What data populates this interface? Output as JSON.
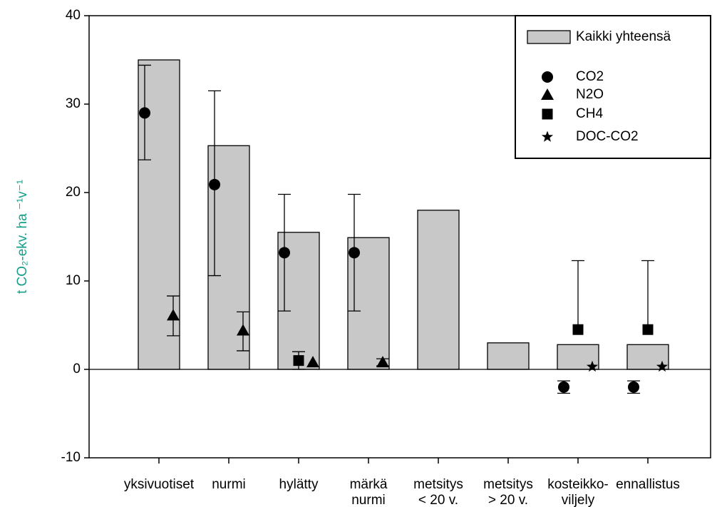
{
  "chart_data": {
    "type": "bar",
    "y_label": "t CO₂-ekv. ha ⁻¹v⁻¹",
    "y_label_color": "#16a08a",
    "categories": [
      [
        "yksivuotiset"
      ],
      [
        "nurmi"
      ],
      [
        "hylätty"
      ],
      [
        "märkä",
        "nurmi"
      ],
      [
        "metsitys",
        "< 20 v."
      ],
      [
        "metsitys",
        "> 20 v."
      ],
      [
        "kosteikko-",
        "viljely"
      ],
      [
        "ennallistus"
      ]
    ],
    "ylim": [
      -10,
      40
    ],
    "yticks": [
      -10,
      0,
      10,
      20,
      30,
      40
    ],
    "legend": "upper right",
    "series": [
      {
        "name": "Kaikki yhteensä",
        "type": "bar",
        "color": "#c8c8c8",
        "values": [
          35,
          25.3,
          15.5,
          14.9,
          18,
          3,
          2.8,
          2.8
        ]
      },
      {
        "name": "CO2",
        "type": "point",
        "marker": "circle",
        "color": "#000000",
        "offset": -1,
        "values": [
          29,
          20.9,
          13.2,
          13.2,
          null,
          null,
          -2,
          -2
        ],
        "error_minus": [
          5.3,
          10.3,
          6.6,
          6.6,
          null,
          null,
          0.7,
          0.7
        ],
        "error_plus": [
          5.4,
          10.6,
          6.6,
          6.6,
          null,
          null,
          0.7,
          0.7
        ]
      },
      {
        "name": "N2O",
        "type": "point",
        "marker": "triangle",
        "color": "#000000",
        "offset": 1,
        "values": [
          6.1,
          4.4,
          0.8,
          0.8,
          null,
          null,
          null,
          null
        ],
        "error_minus": [
          2.3,
          2.3,
          null,
          0.4,
          null,
          null,
          null,
          null
        ],
        "error_plus": [
          2.2,
          2.1,
          null,
          0.4,
          null,
          null,
          null,
          null
        ]
      },
      {
        "name": "CH4",
        "type": "point",
        "marker": "square",
        "color": "#000000",
        "offset": 0,
        "values": [
          null,
          null,
          1.0,
          null,
          null,
          null,
          4.5,
          4.5
        ],
        "error_minus": [
          null,
          null,
          1.0,
          null,
          null,
          null,
          null,
          null
        ],
        "error_plus": [
          null,
          null,
          1.0,
          null,
          null,
          null,
          7.8,
          7.8
        ]
      },
      {
        "name": "DOC-CO2",
        "type": "point",
        "marker": "star",
        "color": "#000000",
        "offset": 1,
        "values": [
          null,
          null,
          null,
          null,
          null,
          null,
          0.3,
          0.3
        ],
        "error_minus": [
          null,
          null,
          null,
          null,
          null,
          null,
          null,
          null
        ],
        "error_plus": [
          null,
          null,
          null,
          null,
          null,
          null,
          null,
          null
        ]
      }
    ]
  }
}
